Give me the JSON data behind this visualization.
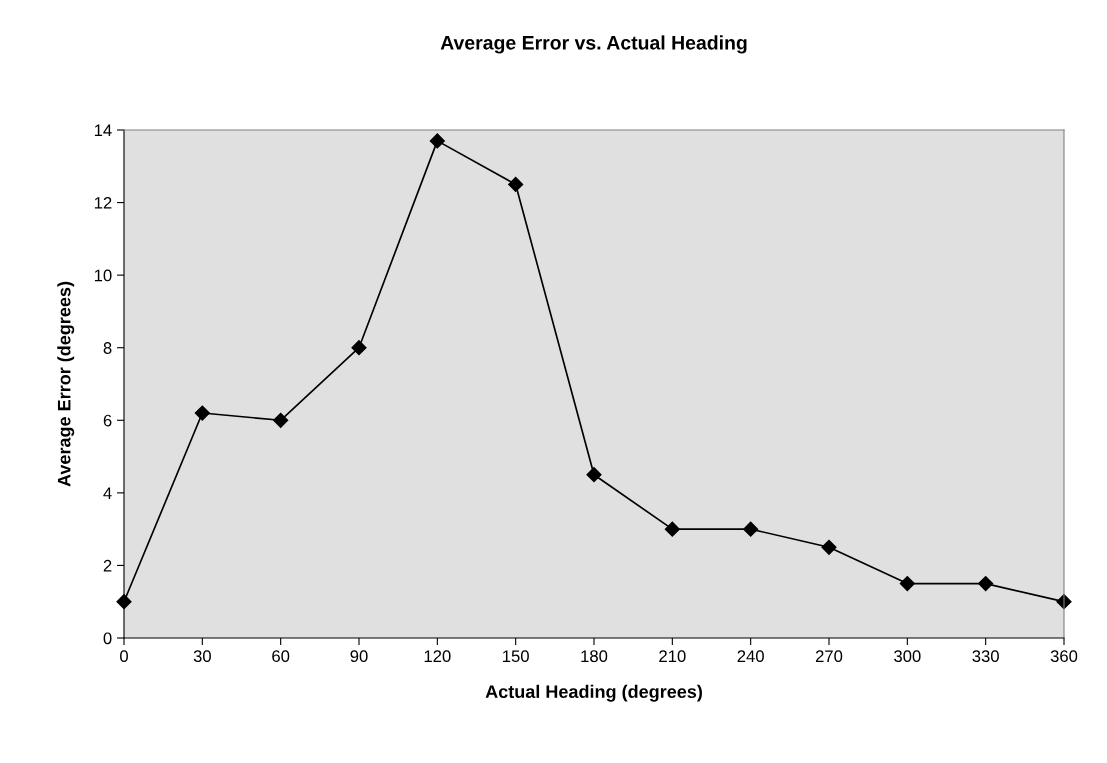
{
  "chart_data": {
    "type": "line",
    "title": "Average Error vs. Actual Heading",
    "xlabel": "Actual Heading (degrees)",
    "ylabel": "Average Error (degrees)",
    "x": [
      0,
      30,
      60,
      90,
      120,
      150,
      180,
      210,
      240,
      270,
      300,
      330,
      360
    ],
    "series": [
      {
        "color": "#000000",
        "values": [
          1,
          6.2,
          6,
          8,
          13.7,
          12.5,
          4.5,
          3,
          3,
          2.5,
          1.5,
          1.5,
          1
        ]
      }
    ],
    "xlim": [
      0,
      360
    ],
    "xticks": [
      0,
      30,
      60,
      90,
      120,
      150,
      180,
      210,
      240,
      270,
      300,
      330,
      360
    ],
    "ylim": [
      0,
      14
    ],
    "yticks": [
      0,
      2,
      4,
      6,
      8,
      10,
      12,
      14
    ],
    "grid": false,
    "legend": false,
    "marker": "diamond",
    "line_style": "solid"
  }
}
